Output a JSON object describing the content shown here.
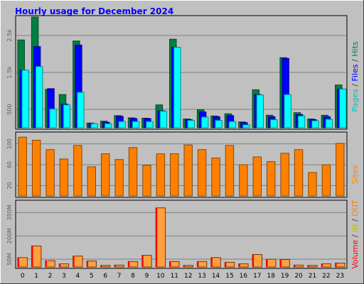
{
  "title": "Hourly usage for December 2024",
  "colors": {
    "background": "#c0c0c0",
    "title": "#0000ff",
    "grid": "#808080",
    "pages": "#00ffff",
    "files": "#0000ff",
    "hits": "#008040",
    "sites": "#ff8000",
    "volume": "#ff0000",
    "in": "#ffff00",
    "out": "#ff8000",
    "kbytes_fill": "#ffa040"
  },
  "chart_data": [
    {
      "type": "bar",
      "panel": "hits-files-pages",
      "categories": [
        "0",
        "1",
        "2",
        "3",
        "4",
        "5",
        "6",
        "7",
        "8",
        "9",
        "10",
        "11",
        "12",
        "13",
        "14",
        "15",
        "16",
        "17",
        "18",
        "19",
        "20",
        "21",
        "22",
        "23"
      ],
      "ylim": [
        0,
        3000
      ],
      "y_ticks": [
        {
          "value": 500,
          "label": "500"
        },
        {
          "value": 1500,
          "label": "1.5k"
        },
        {
          "value": 2500,
          "label": "2.5k"
        }
      ],
      "series": [
        {
          "name": "Hits",
          "values": [
            2380,
            3000,
            1040,
            900,
            2350,
            130,
            180,
            330,
            270,
            260,
            620,
            2400,
            240,
            490,
            320,
            380,
            160,
            1030,
            340,
            1900,
            410,
            240,
            340,
            1160
          ]
        },
        {
          "name": "Files",
          "values": [
            1560,
            2200,
            1060,
            640,
            2240,
            110,
            150,
            310,
            250,
            250,
            460,
            2180,
            220,
            430,
            300,
            330,
            140,
            900,
            300,
            1880,
            360,
            220,
            300,
            1050
          ]
        },
        {
          "name": "Pages",
          "values": [
            1560,
            1660,
            510,
            620,
            960,
            110,
            110,
            170,
            170,
            170,
            450,
            2180,
            200,
            290,
            200,
            170,
            80,
            890,
            220,
            900,
            320,
            190,
            230,
            1050
          ]
        }
      ],
      "legend": [
        {
          "label": "Pages",
          "color": "#00c0c0"
        },
        {
          "label": " / ",
          "color": "#404040"
        },
        {
          "label": "Files",
          "color": "#0000ff"
        },
        {
          "label": " / ",
          "color": "#404040"
        },
        {
          "label": "Hits",
          "color": "#008040"
        }
      ]
    },
    {
      "type": "bar",
      "panel": "sites",
      "categories": [
        "0",
        "1",
        "2",
        "3",
        "4",
        "5",
        "6",
        "7",
        "8",
        "9",
        "10",
        "11",
        "12",
        "13",
        "14",
        "15",
        "16",
        "17",
        "18",
        "19",
        "20",
        "21",
        "22",
        "23"
      ],
      "ylim": [
        0,
        120
      ],
      "y_ticks": [
        {
          "value": 20,
          "label": "20"
        },
        {
          "value": 60,
          "label": "60"
        },
        {
          "value": 100,
          "label": "100"
        }
      ],
      "series": [
        {
          "name": "Sites",
          "values": [
            113,
            107,
            89,
            71,
            97,
            56,
            81,
            70,
            93,
            59,
            81,
            81,
            98,
            89,
            73,
            97,
            60,
            75,
            66,
            82,
            89,
            45,
            60,
            101
          ]
        }
      ],
      "legend": [
        {
          "label": "Sites",
          "color": "#ff8000"
        }
      ]
    },
    {
      "type": "bar",
      "panel": "volume",
      "categories": [
        "0",
        "1",
        "2",
        "3",
        "4",
        "5",
        "6",
        "7",
        "8",
        "9",
        "10",
        "11",
        "12",
        "13",
        "14",
        "15",
        "16",
        "17",
        "18",
        "19",
        "20",
        "21",
        "22",
        "23"
      ],
      "ylim": [
        0,
        420
      ],
      "y_ticks": [
        {
          "value": 50,
          "label": "50M"
        },
        {
          "value": 200,
          "label": "200M"
        },
        {
          "value": 350,
          "label": "350M"
        }
      ],
      "series": [
        {
          "name": "Volume",
          "values": [
            60,
            135,
            40,
            20,
            70,
            38,
            10,
            12,
            35,
            75,
            380,
            35,
            10,
            35,
            60,
            30,
            20,
            80,
            50,
            48,
            12,
            10,
            20,
            25
          ]
        }
      ],
      "legend": [
        {
          "label": "Volume",
          "color": "#ff0000"
        },
        {
          "label": " / ",
          "color": "#404040"
        },
        {
          "label": "IN",
          "color": "#c0c000"
        },
        {
          "label": " / ",
          "color": "#404040"
        },
        {
          "label": "OUT",
          "color": "#ff8000"
        }
      ]
    }
  ]
}
